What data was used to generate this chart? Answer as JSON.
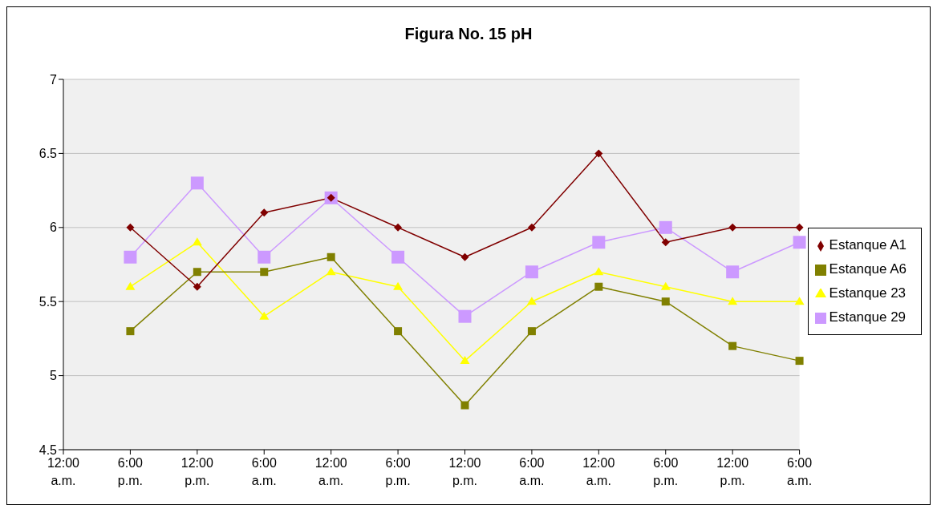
{
  "chart_data": {
    "type": "line",
    "title": "Figura No. 15 pH",
    "categories": [
      "12:00 a.m.",
      "6:00 p.m.",
      "12:00 p.m.",
      "6:00 a.m.",
      "12:00 a.m.",
      "6:00 p.m.",
      "12:00 p.m.",
      "6:00 a.m.",
      "12:00 a.m.",
      "6:00 p.m.",
      "12:00 p.m.",
      "6:00 a.m."
    ],
    "series": [
      {
        "name": "Estanque A1",
        "color": "#800000",
        "marker": "diamond",
        "values": [
          null,
          6.0,
          5.6,
          6.1,
          6.2,
          6.0,
          5.8,
          6.0,
          6.5,
          5.9,
          6.0,
          6.0
        ]
      },
      {
        "name": "Estanque A6",
        "color": "#808000",
        "marker": "square",
        "values": [
          null,
          5.3,
          5.7,
          5.7,
          5.8,
          5.3,
          4.8,
          5.3,
          5.6,
          5.5,
          5.2,
          5.1
        ]
      },
      {
        "name": "Estanque 23",
        "color": "#ffff00",
        "marker": "triangle",
        "values": [
          null,
          5.6,
          5.9,
          5.4,
          5.7,
          5.6,
          5.1,
          5.5,
          5.7,
          5.6,
          5.5,
          5.5
        ]
      },
      {
        "name": "Estanque 29",
        "color": "#cc99ff",
        "marker": "square",
        "values": [
          null,
          5.8,
          6.3,
          5.8,
          6.2,
          5.8,
          5.4,
          5.7,
          5.9,
          6.0,
          5.7,
          5.9
        ]
      }
    ],
    "ylim": [
      4.5,
      7
    ],
    "yticks": [
      4.5,
      5,
      5.5,
      6,
      6.5,
      7
    ],
    "grid": "y",
    "legend": "right",
    "line_style": "solid"
  }
}
